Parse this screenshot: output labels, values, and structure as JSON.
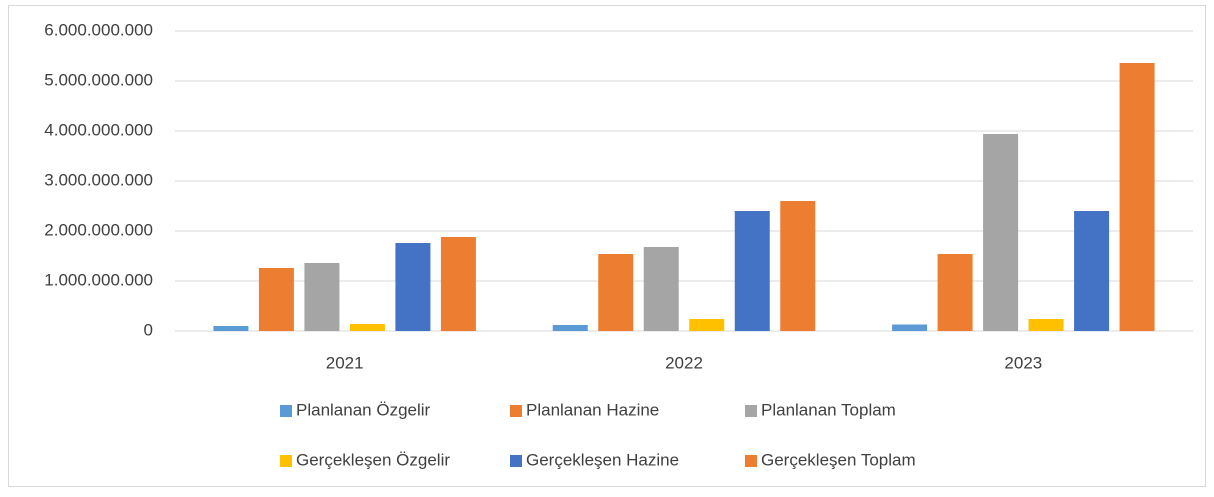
{
  "chart_data": {
    "type": "bar",
    "categories": [
      "2021",
      "2022",
      "2023"
    ],
    "series": [
      {
        "name": "Planlanan Özgelir",
        "color": "#5b9bd5",
        "values": [
          100000000,
          120000000,
          130000000
        ]
      },
      {
        "name": "Planlanan Hazine",
        "color": "#ed7d31",
        "values": [
          1260000000,
          1540000000,
          1540000000
        ]
      },
      {
        "name": "Planlanan Toplam",
        "color": "#a5a5a5",
        "values": [
          1360000000,
          1680000000,
          3940000000
        ]
      },
      {
        "name": "Gerçekleşen Özgelir",
        "color": "#ffc000",
        "values": [
          140000000,
          240000000,
          240000000
        ]
      },
      {
        "name": "Gerçekleşen Hazine",
        "color": "#4472c4",
        "values": [
          1760000000,
          2400000000,
          2400000000
        ]
      },
      {
        "name": "Gerçekleşen Toplam",
        "color": "#ed7d31",
        "values": [
          1880000000,
          2600000000,
          5360000000
        ]
      }
    ],
    "ylim": [
      0,
      6000000000
    ],
    "yticks": [
      0,
      {
        "value": 1000000000,
        "label": "1.000.000.000"
      },
      {
        "value": 2000000000,
        "label": "2.000.000.000"
      },
      {
        "value": 3000000000,
        "label": "3.000.000.000"
      },
      {
        "value": 4000000000,
        "label": "4.000.000.000"
      },
      {
        "value": 5000000000,
        "label": "5.000.000.000"
      },
      {
        "value": 6000000000,
        "label": "6.000.000.000"
      }
    ],
    "grid": true,
    "legend": "bottom"
  }
}
